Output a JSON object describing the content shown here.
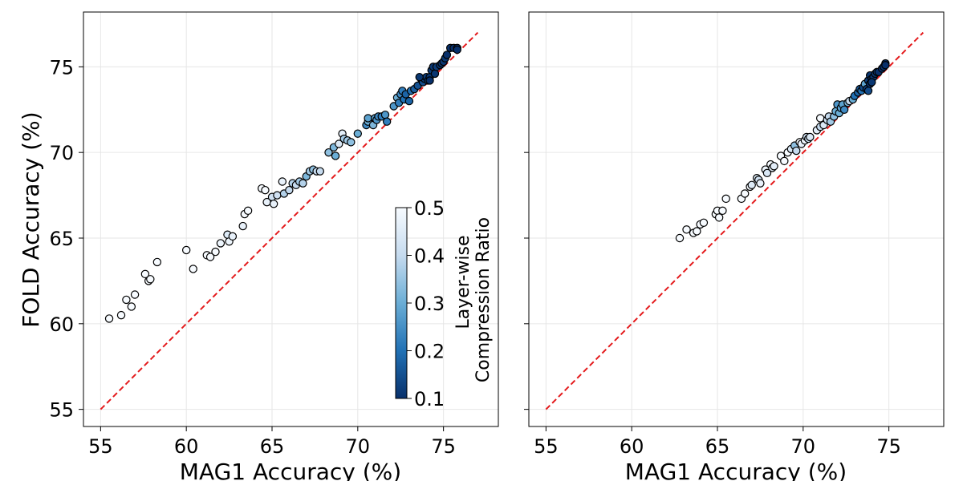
{
  "chart_data": [
    {
      "type": "scatter",
      "name": "left",
      "xlabel": "MAG1 Accuracy (%)",
      "ylabel": "FOLD Accuracy (%)",
      "xlim": [
        54,
        78.2
      ],
      "ylim": [
        54,
        78.2
      ],
      "xticks": [
        55,
        60,
        65,
        70,
        75
      ],
      "yticks": [
        55,
        60,
        65,
        70,
        75
      ],
      "reference_line": {
        "from": [
          55,
          55
        ],
        "to": [
          77,
          77
        ],
        "color": "#e41a1c",
        "style": "dashed"
      },
      "points": [
        [
          55.5,
          60.3,
          0.5
        ],
        [
          56.2,
          60.5,
          0.5
        ],
        [
          56.5,
          61.4,
          0.5
        ],
        [
          56.8,
          61.0,
          0.5
        ],
        [
          57.0,
          61.7,
          0.5
        ],
        [
          57.6,
          62.9,
          0.5
        ],
        [
          57.8,
          62.5,
          0.5
        ],
        [
          57.9,
          62.6,
          0.5
        ],
        [
          58.3,
          63.6,
          0.5
        ],
        [
          60.0,
          64.3,
          0.5
        ],
        [
          60.4,
          63.2,
          0.5
        ],
        [
          61.2,
          64.0,
          0.5
        ],
        [
          61.4,
          63.9,
          0.5
        ],
        [
          61.7,
          64.2,
          0.5
        ],
        [
          62.0,
          64.7,
          0.48
        ],
        [
          62.4,
          65.2,
          0.45
        ],
        [
          62.5,
          64.8,
          0.48
        ],
        [
          62.7,
          65.1,
          0.47
        ],
        [
          63.3,
          65.7,
          0.47
        ],
        [
          63.4,
          66.4,
          0.5
        ],
        [
          63.6,
          66.6,
          0.5
        ],
        [
          64.4,
          67.9,
          0.5
        ],
        [
          64.6,
          67.8,
          0.5
        ],
        [
          64.7,
          67.1,
          0.47
        ],
        [
          65.0,
          67.4,
          0.42
        ],
        [
          65.1,
          67.0,
          0.47
        ],
        [
          65.3,
          67.5,
          0.42
        ],
        [
          65.6,
          68.3,
          0.47
        ],
        [
          65.7,
          67.6,
          0.38
        ],
        [
          66.0,
          67.8,
          0.4
        ],
        [
          66.2,
          68.2,
          0.38
        ],
        [
          66.4,
          68.1,
          0.4
        ],
        [
          66.6,
          68.3,
          0.36
        ],
        [
          66.8,
          68.2,
          0.38
        ],
        [
          67.0,
          68.6,
          0.32
        ],
        [
          67.2,
          68.9,
          0.36
        ],
        [
          67.4,
          69.0,
          0.34
        ],
        [
          67.6,
          68.9,
          0.4
        ],
        [
          67.8,
          68.9,
          0.4
        ],
        [
          68.3,
          70.0,
          0.34
        ],
        [
          68.6,
          70.3,
          0.32
        ],
        [
          68.7,
          69.8,
          0.3
        ],
        [
          68.9,
          70.5,
          0.44
        ],
        [
          69.1,
          71.1,
          0.46
        ],
        [
          69.2,
          70.8,
          0.36
        ],
        [
          69.4,
          70.7,
          0.36
        ],
        [
          69.6,
          70.6,
          0.34
        ],
        [
          70.0,
          71.1,
          0.3
        ],
        [
          70.5,
          71.6,
          0.24
        ],
        [
          70.6,
          71.8,
          0.3
        ],
        [
          70.6,
          72.0,
          0.28
        ],
        [
          70.9,
          71.6,
          0.32
        ],
        [
          71.0,
          72.0,
          0.28
        ],
        [
          71.1,
          71.9,
          0.26
        ],
        [
          71.2,
          72.1,
          0.24
        ],
        [
          71.4,
          72.1,
          0.22
        ],
        [
          71.6,
          72.2,
          0.26
        ],
        [
          71.7,
          71.8,
          0.22
        ],
        [
          72.1,
          72.7,
          0.26
        ],
        [
          72.3,
          73.2,
          0.3
        ],
        [
          72.4,
          72.9,
          0.22
        ],
        [
          72.5,
          73.4,
          0.24
        ],
        [
          72.6,
          73.6,
          0.22
        ],
        [
          72.7,
          73.1,
          0.2
        ],
        [
          72.8,
          73.4,
          0.18
        ],
        [
          73.0,
          73.0,
          0.18
        ],
        [
          73.1,
          73.6,
          0.2
        ],
        [
          73.3,
          73.7,
          0.17
        ],
        [
          73.5,
          73.9,
          0.15
        ],
        [
          73.7,
          74.3,
          0.13
        ],
        [
          73.8,
          74.1,
          0.14
        ],
        [
          73.9,
          74.3,
          0.12
        ],
        [
          74.0,
          74.4,
          0.12
        ],
        [
          74.1,
          74.2,
          0.13
        ],
        [
          74.2,
          74.4,
          0.11
        ],
        [
          74.3,
          74.8,
          0.12
        ],
        [
          74.4,
          75.0,
          0.11
        ],
        [
          74.5,
          74.6,
          0.11
        ],
        [
          74.6,
          75.0,
          0.12
        ],
        [
          74.8,
          75.1,
          0.11
        ],
        [
          74.9,
          75.2,
          0.11
        ],
        [
          75.0,
          75.3,
          0.11
        ],
        [
          75.1,
          75.5,
          0.11
        ],
        [
          75.2,
          75.7,
          0.1
        ],
        [
          75.4,
          76.1,
          0.1
        ],
        [
          75.6,
          76.1,
          0.1
        ],
        [
          75.8,
          76.1,
          0.1
        ],
        [
          75.8,
          76.0,
          0.1
        ],
        [
          74.2,
          74.2,
          0.1
        ],
        [
          73.6,
          74.4,
          0.11
        ]
      ]
    },
    {
      "type": "scatter",
      "name": "right",
      "xlabel": "MAG1 Accuracy (%)",
      "ylabel": "",
      "xlim": [
        54,
        78.2
      ],
      "ylim": [
        54,
        78.2
      ],
      "xticks": [
        55,
        60,
        65,
        70,
        75
      ],
      "yticks": [
        55,
        60,
        65,
        70,
        75
      ],
      "reference_line": {
        "from": [
          55,
          55
        ],
        "to": [
          77,
          77
        ],
        "color": "#e41a1c",
        "style": "dashed"
      },
      "points": [
        [
          62.8,
          65.0,
          0.5
        ],
        [
          63.2,
          65.5,
          0.5
        ],
        [
          63.6,
          65.3,
          0.5
        ],
        [
          63.8,
          65.4,
          0.5
        ],
        [
          64.0,
          65.8,
          0.5
        ],
        [
          64.2,
          65.9,
          0.5
        ],
        [
          64.9,
          66.4,
          0.5
        ],
        [
          65.0,
          66.6,
          0.5
        ],
        [
          65.1,
          66.2,
          0.5
        ],
        [
          65.3,
          66.6,
          0.5
        ],
        [
          65.5,
          67.3,
          0.5
        ],
        [
          66.4,
          67.3,
          0.5
        ],
        [
          66.6,
          67.6,
          0.5
        ],
        [
          66.9,
          68.0,
          0.5
        ],
        [
          67.0,
          68.1,
          0.45
        ],
        [
          67.3,
          68.5,
          0.45
        ],
        [
          67.4,
          68.4,
          0.42
        ],
        [
          67.5,
          68.2,
          0.47
        ],
        [
          67.8,
          69.0,
          0.48
        ],
        [
          67.9,
          68.8,
          0.44
        ],
        [
          68.1,
          69.3,
          0.5
        ],
        [
          68.2,
          69.1,
          0.46
        ],
        [
          68.3,
          69.2,
          0.46
        ],
        [
          68.7,
          69.8,
          0.5
        ],
        [
          68.9,
          69.5,
          0.5
        ],
        [
          69.1,
          70.0,
          0.5
        ],
        [
          69.3,
          70.2,
          0.44
        ],
        [
          69.5,
          70.4,
          0.34
        ],
        [
          69.6,
          70.1,
          0.4
        ],
        [
          69.8,
          70.6,
          0.5
        ],
        [
          69.9,
          70.5,
          0.47
        ],
        [
          70.1,
          70.7,
          0.48
        ],
        [
          70.2,
          70.9,
          0.42
        ],
        [
          70.3,
          70.8,
          0.4
        ],
        [
          70.4,
          70.9,
          0.44
        ],
        [
          70.8,
          71.3,
          0.46
        ],
        [
          71.0,
          71.5,
          0.4
        ],
        [
          71.0,
          72.0,
          0.5
        ],
        [
          71.2,
          71.6,
          0.44
        ],
        [
          71.4,
          71.9,
          0.42
        ],
        [
          71.5,
          72.1,
          0.4
        ],
        [
          71.6,
          71.8,
          0.36
        ],
        [
          71.8,
          72.1,
          0.34
        ],
        [
          71.9,
          72.4,
          0.3
        ],
        [
          72.0,
          72.8,
          0.26
        ],
        [
          72.1,
          72.3,
          0.3
        ],
        [
          72.2,
          72.6,
          0.28
        ],
        [
          72.3,
          72.8,
          0.28
        ],
        [
          72.4,
          72.5,
          0.24
        ],
        [
          72.6,
          72.9,
          0.32
        ],
        [
          72.7,
          73.0,
          0.4
        ],
        [
          72.9,
          73.1,
          0.3
        ],
        [
          73.0,
          73.3,
          0.2
        ],
        [
          73.2,
          73.5,
          0.18
        ],
        [
          73.3,
          73.7,
          0.16
        ],
        [
          73.4,
          73.6,
          0.2
        ],
        [
          73.5,
          73.8,
          0.14
        ],
        [
          73.6,
          74.0,
          0.28
        ],
        [
          73.7,
          73.7,
          0.12
        ],
        [
          73.8,
          74.2,
          0.12
        ],
        [
          73.9,
          74.5,
          0.11
        ],
        [
          74.0,
          74.3,
          0.12
        ],
        [
          74.1,
          74.4,
          0.11
        ],
        [
          74.2,
          74.6,
          0.11
        ],
        [
          74.3,
          74.7,
          0.12
        ],
        [
          74.4,
          74.7,
          0.1
        ],
        [
          74.6,
          74.9,
          0.1
        ],
        [
          74.7,
          75.0,
          0.1
        ],
        [
          74.8,
          75.2,
          0.1
        ],
        [
          74.8,
          75.1,
          0.1
        ],
        [
          73.9,
          74.0,
          0.1
        ],
        [
          73.8,
          73.6,
          0.14
        ],
        [
          74.0,
          74.1,
          0.11
        ]
      ]
    }
  ],
  "colorbar": {
    "label_line1": "Layer-wise",
    "label_line2": "Compression Ratio",
    "min": 0.1,
    "max": 0.5,
    "ticks": [
      "0.1",
      "0.2",
      "0.3",
      "0.4",
      "0.5"
    ],
    "colormap": "Blues_r",
    "color_low": "#08306b",
    "color_high": "#f7fbff"
  },
  "colors": {
    "reference_line": "#e41a1c",
    "grid": "#e6e6e6"
  }
}
